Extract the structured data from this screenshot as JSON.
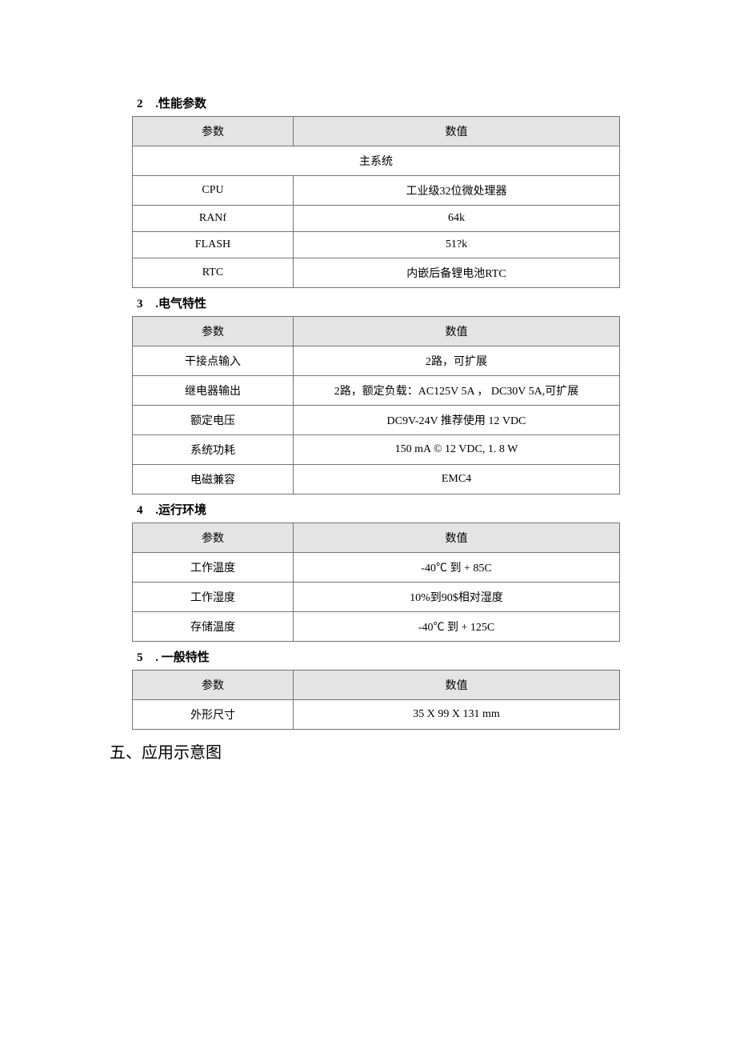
{
  "sections": [
    {
      "number": "2",
      "title": ".性能参数",
      "header": {
        "param": "参数",
        "value": "数值"
      },
      "sectionRow": "主系统",
      "rows": [
        {
          "param": "CPU",
          "value": "工业级32位微处理器"
        },
        {
          "param": "RANf",
          "value": "64k"
        },
        {
          "param": "FLASH",
          "value": "51?k"
        },
        {
          "param": "RTC",
          "value": "内嵌后备锂电池RTC"
        }
      ]
    },
    {
      "number": "3",
      "title": ".电气特性",
      "header": {
        "param": "参数",
        "value": "数值"
      },
      "rows": [
        {
          "param": "干接点输入",
          "value": "2路，可扩展"
        },
        {
          "param": "继电器输出",
          "value": "2路，额定负载：AC125V 5A ， DC30V 5A,可扩展"
        },
        {
          "param": "额定电压",
          "value": "DC9V-24V 推荐使用 12 VDC"
        },
        {
          "param": "系统功耗",
          "value": "150 mA © 12 VDC, 1. 8 W"
        },
        {
          "param": "电磁兼容",
          "value": "EMC4"
        }
      ]
    },
    {
      "number": "4",
      "title": ".运行环境",
      "header": {
        "param": "参数",
        "value": "数值"
      },
      "rows": [
        {
          "param": "工作温度",
          "value": "-40℃ 到 + 85C"
        },
        {
          "param": "工作湿度",
          "value": "10%到90$相对湿度"
        },
        {
          "param": "存储温度",
          "value": "-40℃ 到 + 125C"
        }
      ]
    },
    {
      "number": "5",
      "title": ". 一般特性",
      "header": {
        "param": "参数",
        "value": "数值"
      },
      "rows": [
        {
          "param": "外形尺寸",
          "value": "35 X 99 X 131 mm"
        }
      ]
    }
  ],
  "footer": "五、应用示意图"
}
